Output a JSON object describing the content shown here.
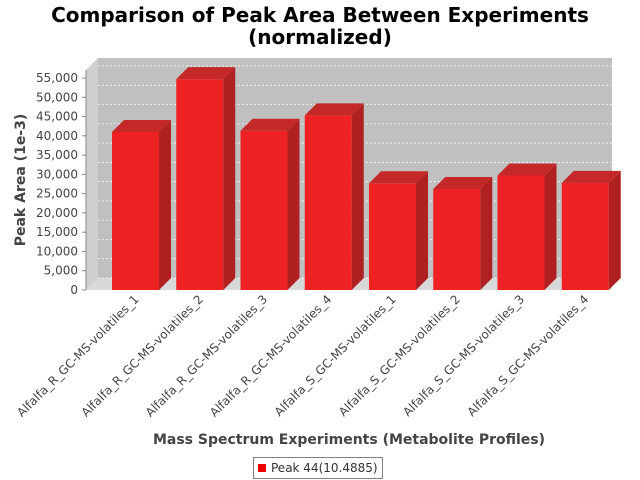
{
  "chart_data": {
    "type": "bar",
    "title_line1": "Comparison of Peak Area Between Experiments",
    "title_line2": "(normalized)",
    "xlabel": "Mass Spectrum Experiments (Metabolite Profiles)",
    "ylabel": "Peak Area (1e-3)",
    "categories": [
      "Alfalfa_R_GC-MS-volatiles_1",
      "Alfalfa_R_GC-MS-volatiles_2",
      "Alfalfa_R_GC-MS-volatiles_3",
      "Alfalfa_R_GC-MS-volatiles_4",
      "Alfalfa_S_GC-MS-volatiles_1",
      "Alfalfa_S_GC-MS-volatiles_2",
      "Alfalfa_S_GC-MS-volatiles_3",
      "Alfalfa_S_GC-MS-volatiles_4"
    ],
    "series": [
      {
        "name": "Peak 44(10.4885)",
        "values": [
          41000,
          54700,
          41300,
          45300,
          27700,
          26200,
          29700,
          27800
        ]
      }
    ],
    "ylim": [
      0,
      55000
    ],
    "yticks": [
      "0",
      "5,000",
      "10,000",
      "15,000",
      "20,000",
      "25,000",
      "30,000",
      "35,000",
      "40,000",
      "45,000",
      "50,000",
      "55,000"
    ],
    "grid": true,
    "legend_position": "bottom",
    "colors": {
      "bar_front": "#ee2222",
      "bar_side": "#b02020",
      "bar_top": "#c42828",
      "plot_bg": "#c0c0c0",
      "wall_side": "#cfcfcf",
      "floor": "#d8d8d8"
    }
  }
}
